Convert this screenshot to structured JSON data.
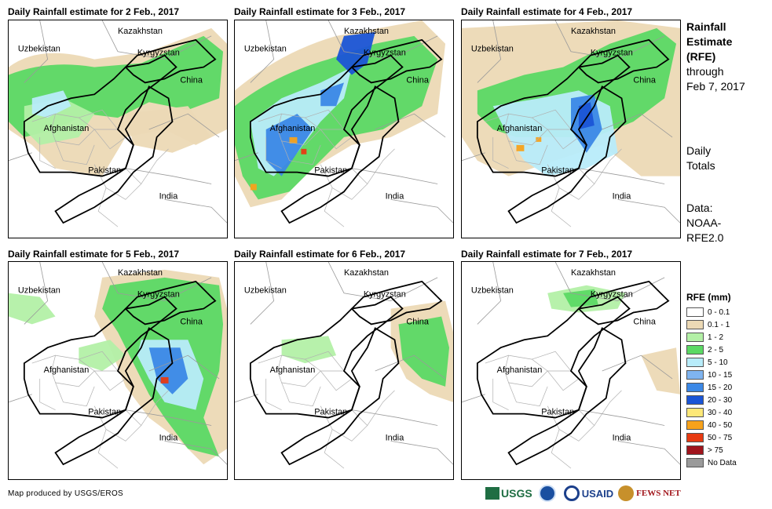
{
  "panels": [
    {
      "title": "Daily Rainfall estimate for 2 Feb., 2017"
    },
    {
      "title": "Daily Rainfall estimate for 3 Feb., 2017"
    },
    {
      "title": "Daily Rainfall estimate for 4 Feb., 2017"
    },
    {
      "title": "Daily Rainfall estimate for 5 Feb., 2017"
    },
    {
      "title": "Daily Rainfall estimate for 6 Feb., 2017"
    },
    {
      "title": "Daily Rainfall estimate for 7 Feb., 2017"
    }
  ],
  "map_labels": {
    "kazakhstan": "Kazakhstan",
    "uzbekistan": "Uzbekistan",
    "kyrgyzstan": "Kyrgyzstan",
    "china": "China",
    "afghanistan": "Afghanistan",
    "pakistan": "Pakistan",
    "india": "India"
  },
  "sidebar": {
    "title_line1": "Rainfall",
    "title_line2": "Estimate",
    "title_line3": "(RFE)",
    "through_label": "through",
    "through_date": "Feb 7, 2017",
    "totals_line1": "Daily",
    "totals_line2": "Totals",
    "data_label": "Data:",
    "data_source_line1": "NOAA-",
    "data_source_line2": "RFE2.0"
  },
  "legend": {
    "title": "RFE (mm)",
    "items": [
      {
        "label": "0 - 0.1",
        "color": "#ffffff"
      },
      {
        "label": "0.1 - 1",
        "color": "#ecd9b5"
      },
      {
        "label": "1 - 2",
        "color": "#b3f0a6"
      },
      {
        "label": "2 - 5",
        "color": "#5bd964"
      },
      {
        "label": "5 - 10",
        "color": "#b8ecfa"
      },
      {
        "label": "10 - 15",
        "color": "#7fb4f0"
      },
      {
        "label": "15 - 20",
        "color": "#3b88e6"
      },
      {
        "label": "20 - 30",
        "color": "#1b55d6"
      },
      {
        "label": "30 - 40",
        "color": "#fde878"
      },
      {
        "label": "40 - 50",
        "color": "#f7a21b"
      },
      {
        "label": "50 - 75",
        "color": "#e83a12"
      },
      {
        "label": "> 75",
        "color": "#a0141c"
      },
      {
        "label": "No Data",
        "color": "#9a9a9a"
      }
    ]
  },
  "footer": {
    "credit": "Map produced by USGS/EROS"
  },
  "logos": {
    "usgs": "USGS",
    "usaid": "USAID",
    "fews": "FEWS NET"
  }
}
